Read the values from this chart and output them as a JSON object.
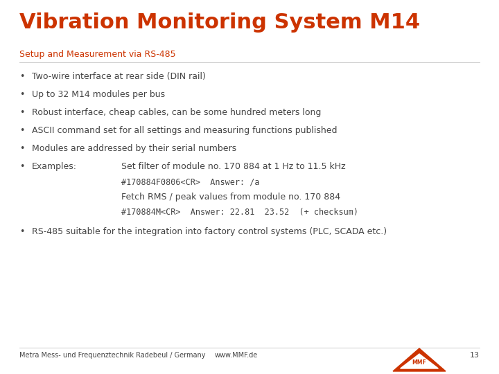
{
  "title": "Vibration Monitoring System M14",
  "subtitle": "Setup and Measurement via RS-485",
  "title_color": "#CC3300",
  "subtitle_color": "#CC3300",
  "bg_color": "#FFFFFF",
  "bullet_color": "#444444",
  "bullet_points": [
    "Two-wire interface at rear side (DIN rail)",
    "Up to 32 M14 modules per bus",
    "Robust interface, cheap cables, can be some hundred meters long",
    "ASCII command set for all settings and measuring functions published",
    "Modules are addressed by their serial numbers"
  ],
  "example_label": "Examples:",
  "example_lines": [
    "Set filter of module no. 170 884 at 1 Hz to 11.5 kHz",
    "#170884F0806<CR>  Answer: /a",
    "Fetch RMS / peak values from module no. 170 884",
    "#170884M<CR>  Answer: 22.81  23.52  (+ checksum)"
  ],
  "last_bullet": "RS-485 suitable for the integration into factory control systems (PLC, SCADA etc.)",
  "footer_left": "Metra Mess- und Frequenztechnik Radebeul / Germany",
  "footer_middle": "www.MMF.de",
  "footer_page": "13",
  "footer_color": "#444444",
  "normal_color": "#444444",
  "title_fontsize": 22,
  "subtitle_fontsize": 9,
  "bullet_fontsize": 9,
  "footer_fontsize": 7
}
